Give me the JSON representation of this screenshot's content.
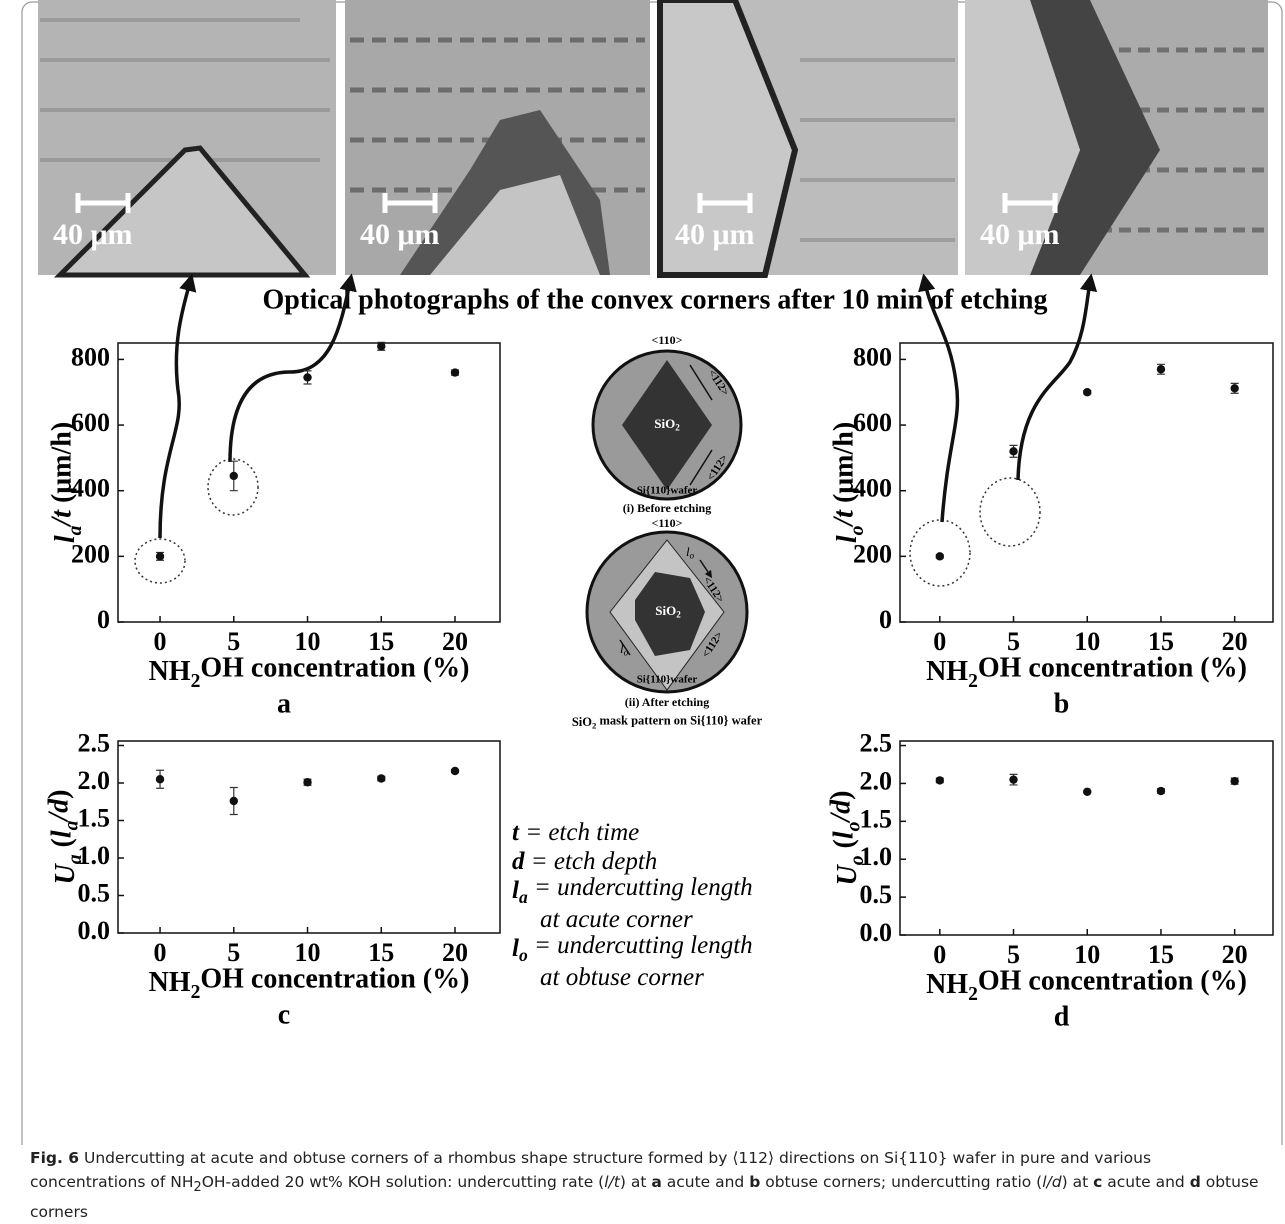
{
  "chart_data": [
    {
      "type": "scatter",
      "panel": "a",
      "y_label": [
        {
          "text": "l",
          "style": "bold-italic"
        },
        {
          "text": "a",
          "style": "sub-bold-italic"
        },
        {
          "text": "/t",
          "style": "bold-italic"
        },
        {
          "text": " (μm/h)",
          "style": "normal"
        }
      ],
      "x_label": [
        {
          "text": "NH",
          "style": "normal"
        },
        {
          "text": "2",
          "style": "sub"
        },
        {
          "text": "OH concentration (%)",
          "style": "normal"
        }
      ],
      "x": [
        0,
        5,
        10,
        15,
        20
      ],
      "values": [
        200,
        445,
        745,
        840,
        760
      ],
      "errors": [
        12,
        45,
        20,
        12,
        8
      ],
      "xlim": [
        -2.85,
        23.05
      ],
      "ylim": [
        0,
        850
      ],
      "xticks": [
        0,
        5,
        10,
        15,
        20
      ],
      "yticks": [
        0,
        200,
        400,
        600,
        800
      ],
      "color": "#111111"
    },
    {
      "type": "scatter",
      "panel": "b",
      "y_label": [
        {
          "text": "l",
          "style": "bold-italic"
        },
        {
          "text": "o",
          "style": "sub-bold-italic"
        },
        {
          "text": "/t",
          "style": "bold-italic"
        },
        {
          "text": " (μm/h)",
          "style": "normal"
        }
      ],
      "x_label": [
        {
          "text": "NH",
          "style": "normal"
        },
        {
          "text": "2",
          "style": "sub"
        },
        {
          "text": "OH concentration (%)",
          "style": "normal"
        }
      ],
      "x": [
        0,
        5,
        10,
        15,
        20
      ],
      "values": [
        200,
        520,
        700,
        770,
        712
      ],
      "errors": [
        5,
        18,
        5,
        15,
        15
      ],
      "xlim": [
        -2.7,
        22.6
      ],
      "ylim": [
        0,
        850
      ],
      "xticks": [
        0,
        5,
        10,
        15,
        20
      ],
      "yticks": [
        0,
        200,
        400,
        600,
        800
      ],
      "color": "#111111"
    },
    {
      "type": "scatter",
      "panel": "c",
      "y_label": [
        {
          "text": "U",
          "style": "bold-italic"
        },
        {
          "text": "a",
          "style": "sub-bold-italic"
        },
        {
          "text": " (",
          "style": "normal"
        },
        {
          "text": "l",
          "style": "bold-italic"
        },
        {
          "text": "a",
          "style": "sub-bold-italic"
        },
        {
          "text": "/d",
          "style": "bold-italic"
        },
        {
          "text": ")",
          "style": "normal"
        }
      ],
      "x_label": [
        {
          "text": "NH",
          "style": "normal"
        },
        {
          "text": "2",
          "style": "sub"
        },
        {
          "text": "OH concentration (%)",
          "style": "normal"
        }
      ],
      "x": [
        0,
        5,
        10,
        15,
        20
      ],
      "values": [
        2.05,
        1.76,
        2.01,
        2.06,
        2.16
      ],
      "errors": [
        0.12,
        0.18,
        0.04,
        0.03,
        0.02
      ],
      "xlim": [
        -2.85,
        23.05
      ],
      "ylim": [
        0,
        2.56
      ],
      "xticks": [
        0,
        5,
        10,
        15,
        20
      ],
      "yticks": [
        {
          "value": 0,
          "label": "0.0"
        },
        0.5,
        {
          "value": 1,
          "label": "1.0"
        },
        1.5,
        {
          "value": 2,
          "label": "2.0"
        },
        2.5
      ],
      "color": "#111111"
    },
    {
      "type": "scatter",
      "panel": "d",
      "y_label": [
        {
          "text": "U",
          "style": "bold-italic"
        },
        {
          "text": "o",
          "style": "sub-bold-italic"
        },
        {
          "text": " (",
          "style": "normal"
        },
        {
          "text": "l",
          "style": "bold-italic"
        },
        {
          "text": "o",
          "style": "sub-bold-italic"
        },
        {
          "text": "/d",
          "style": "bold-italic"
        },
        {
          "text": ")",
          "style": "normal"
        }
      ],
      "x_label": [
        {
          "text": "NH",
          "style": "normal"
        },
        {
          "text": "2",
          "style": "sub"
        },
        {
          "text": "OH concentration (%)",
          "style": "normal"
        }
      ],
      "x": [
        0,
        5,
        10,
        15,
        20
      ],
      "values": [
        2.04,
        2.05,
        1.89,
        1.9,
        2.03
      ],
      "errors": [
        0.03,
        0.07,
        0.01,
        0.03,
        0.04
      ],
      "xlim": [
        -2.7,
        22.6
      ],
      "ylim": [
        0,
        2.56
      ],
      "xticks": [
        0,
        5,
        10,
        15,
        20
      ],
      "yticks": [
        {
          "value": 0,
          "label": "0.0"
        },
        0.5,
        {
          "value": 1,
          "label": "1.0"
        },
        1.5,
        {
          "value": 2,
          "label": "2.0"
        },
        2.5
      ],
      "color": "#111111"
    }
  ],
  "photos": {
    "scale_bars": [
      "40 μm",
      "40 μm",
      "40 μm",
      "40 μm"
    ],
    "caption": "Optical photographs of the convex corners after 10 min of etching"
  },
  "diagram": {
    "orientation": "<110>",
    "direction": "<112>",
    "wafer": "Si{110}wafer",
    "mask": [
      {
        "text": "SiO",
        "style": "normal"
      },
      {
        "text": "2",
        "style": "sub"
      }
    ],
    "lo": [
      {
        "text": "l",
        "style": "italic"
      },
      {
        "text": "o",
        "style": "sub-italic"
      }
    ],
    "before": "(i) Before etching",
    "after": "(ii) After etching",
    "title": [
      {
        "text": "SiO",
        "style": "normal"
      },
      {
        "text": "2",
        "style": "sub"
      },
      {
        "text": " mask pattern on Si{110} wafer",
        "style": "normal"
      }
    ]
  },
  "legend": [
    [
      {
        "text": "t",
        "style": "bold-italic"
      },
      {
        "text": " = etch time",
        "style": "italic"
      }
    ],
    [
      {
        "text": "d",
        "style": "bold-italic"
      },
      {
        "text": " = etch depth",
        "style": "italic"
      }
    ],
    [
      {
        "text": "l",
        "style": "bold-italic"
      },
      {
        "text": "a",
        "style": "sub-bold-italic"
      },
      {
        "text": " = undercutting length",
        "style": "italic"
      }
    ],
    [
      {
        "text": "at acute corner",
        "style": "italic"
      }
    ],
    [
      {
        "text": "l",
        "style": "bold-italic"
      },
      {
        "text": "o",
        "style": "sub-bold-italic"
      },
      {
        "text": " = undercutting length",
        "style": "italic"
      }
    ],
    [
      {
        "text": "at obtuse corner",
        "style": "italic"
      }
    ]
  ],
  "caption": [
    "Fig. 6",
    " Undercutting at acute and obtuse corners of a rhombus shape structure formed by ⟨112⟩ directions on Si{110} wafer in pure and various concentrations of NH",
    "2",
    "OH-added 20 wt% KOH solution: undercutting rate (",
    "l/t",
    ") at ",
    "a",
    " acute and ",
    "b",
    " obtuse corners; undercutting ratio (",
    "l/d",
    ") at ",
    "c",
    " acute and ",
    "d",
    " obtuse corners"
  ]
}
